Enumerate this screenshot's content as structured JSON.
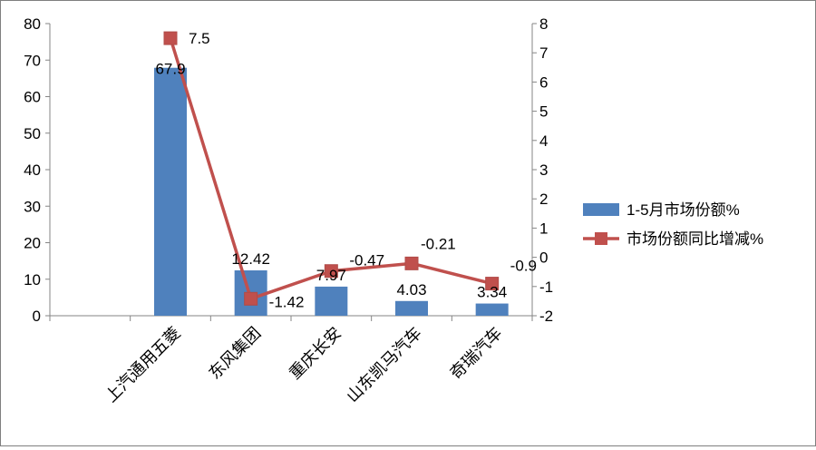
{
  "chart_data": {
    "type": "bar",
    "categories": [
      "上汽通用五菱",
      "东风集团",
      "重庆长安",
      "山东凯马汽车",
      "奇瑞汽车"
    ],
    "x_offset_slots": 1,
    "series": [
      {
        "name": "1-5月市场份额%",
        "type": "bar",
        "axis": "left",
        "color": "#4F81BD",
        "values": [
          67.9,
          12.42,
          7.97,
          4.03,
          3.34
        ],
        "labels": [
          "67.9",
          "12.42",
          "7.97",
          "4.03",
          "3.34"
        ]
      },
      {
        "name": "市场份额同比增减%",
        "type": "line",
        "axis": "right",
        "color": "#C0504D",
        "values": [
          7.5,
          -1.42,
          -0.47,
          -0.21,
          -0.9
        ],
        "labels": [
          "7.5",
          "-1.42",
          "-0.47",
          "-0.21",
          "-0.9"
        ]
      }
    ],
    "y_left": {
      "min": 0,
      "max": 80,
      "step": 10
    },
    "y_right": {
      "min": -2,
      "max": 8,
      "step": 1
    },
    "legend_position": "right",
    "grid": false
  }
}
